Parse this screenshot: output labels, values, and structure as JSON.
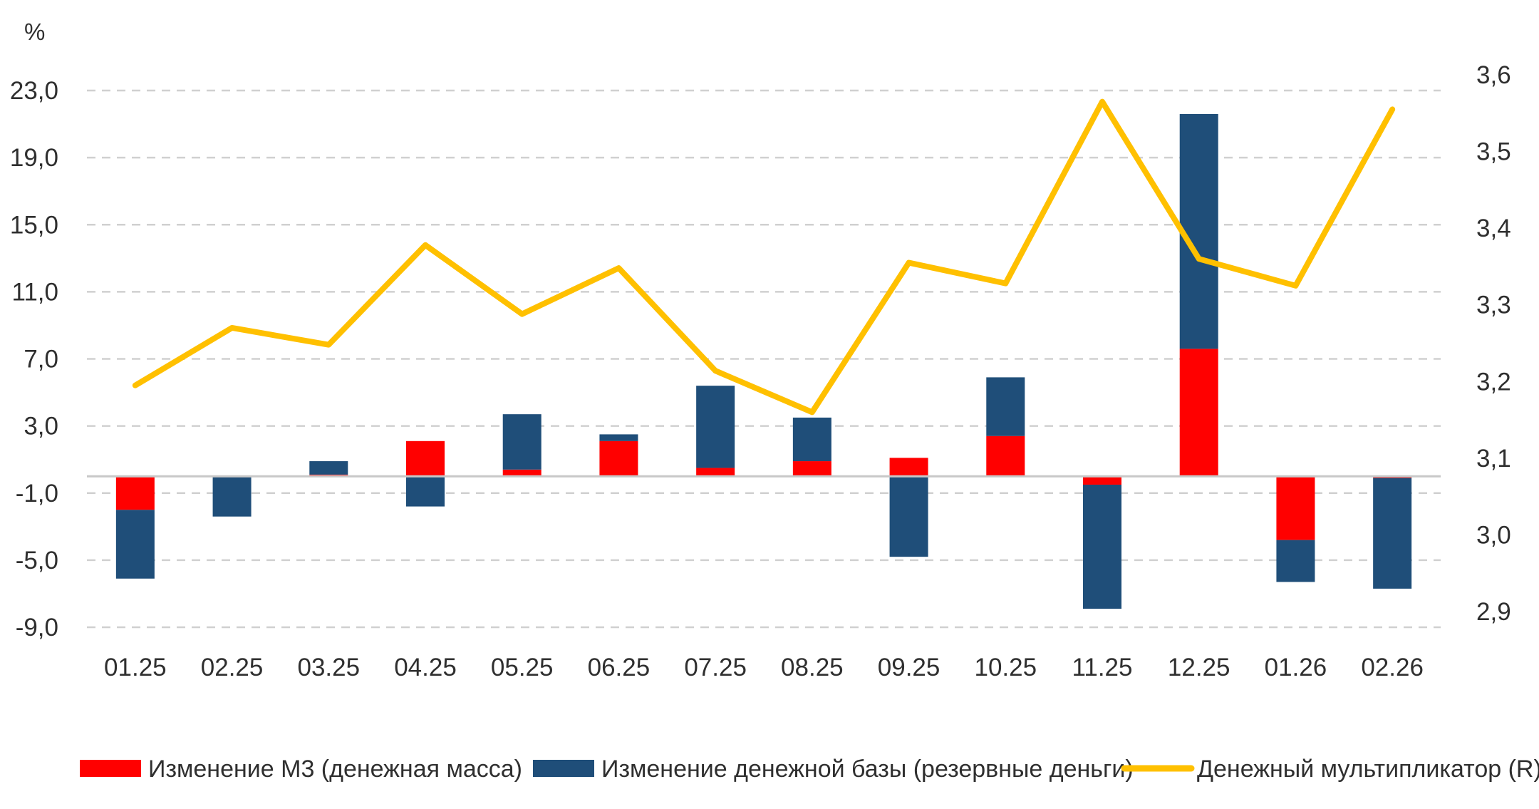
{
  "chart_data": {
    "type": "bar",
    "stacked": true,
    "unit_label": "%",
    "categories": [
      "01.25",
      "02.25",
      "03.25",
      "04.25",
      "05.25",
      "06.25",
      "07.25",
      "08.25",
      "09.25",
      "10.25",
      "11.25",
      "12.25",
      "01.26",
      "02.26"
    ],
    "series": [
      {
        "name": "Изменение М3 (денежная масса)",
        "kind": "bar",
        "axis": "left",
        "color": "#ff0000",
        "values": [
          -2.0,
          0.0,
          0.1,
          2.1,
          0.4,
          2.1,
          0.5,
          0.9,
          1.1,
          2.4,
          -0.5,
          7.6,
          -3.8,
          -0.1
        ]
      },
      {
        "name": "Изменение денежной базы (резервные деньги)",
        "kind": "bar",
        "axis": "left",
        "color": "#1f4e79",
        "values": [
          -4.1,
          -2.4,
          0.8,
          -1.8,
          3.3,
          0.4,
          4.9,
          2.6,
          -4.8,
          3.5,
          -7.4,
          14.0,
          -2.5,
          -6.6
        ]
      },
      {
        "name": "Денежный мультипликатор (R)",
        "kind": "line",
        "axis": "right",
        "color": "#ffc000",
        "values": [
          3.195,
          3.27,
          3.248,
          3.378,
          3.288,
          3.348,
          3.214,
          3.16,
          3.355,
          3.328,
          3.565,
          3.36,
          3.325,
          3.555
        ]
      }
    ],
    "y_left": {
      "min": -9.0,
      "max": 23.0,
      "ticks": [
        23.0,
        19.0,
        15.0,
        11.0,
        7.0,
        3.0,
        -1.0,
        -5.0,
        -9.0
      ],
      "tick_labels": [
        "23,0",
        "19,0",
        "15,0",
        "11,0",
        "7,0",
        "3,0",
        "-1,0",
        "-5,0",
        "-9,0"
      ]
    },
    "y_right": {
      "min": 2.9,
      "max": 3.6,
      "ticks": [
        3.6,
        3.5,
        3.4,
        3.3,
        3.2,
        3.1,
        3.0,
        2.9
      ],
      "tick_labels": [
        "3,6",
        "3,5",
        "3,4",
        "3,3",
        "3,2",
        "3,1",
        "3,0",
        "2,9"
      ]
    },
    "grid": true,
    "legend_position": "bottom"
  }
}
